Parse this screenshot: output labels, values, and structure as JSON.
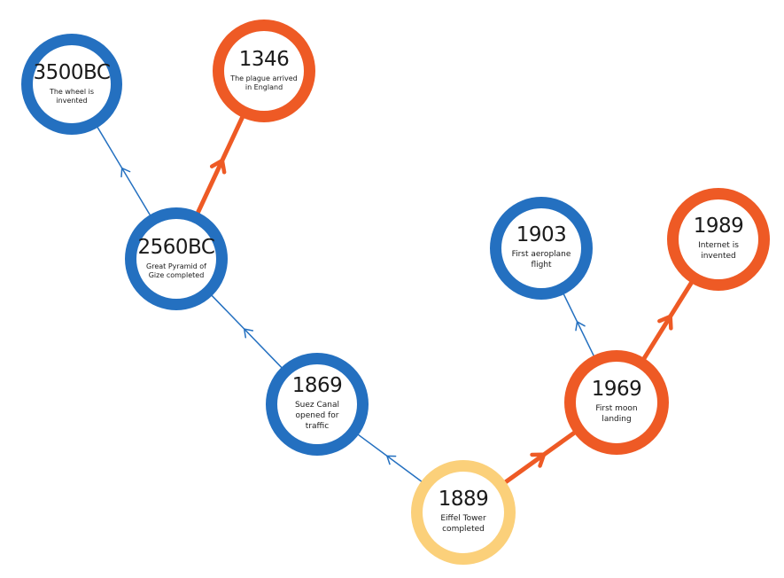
{
  "nodes": [
    {
      "id": "n3500bc",
      "year": "3500BC",
      "desc": "The wheel is invented",
      "color": "blue"
    },
    {
      "id": "n1346",
      "year": "1346",
      "desc": "The plague arrived in England",
      "color": "orange"
    },
    {
      "id": "n2560bc",
      "year": "2560BC",
      "desc": "Great Pyramid of Gize completed",
      "color": "blue"
    },
    {
      "id": "n1903",
      "year": "1903",
      "desc": "First aeroplane flight",
      "color": "blue"
    },
    {
      "id": "n1989",
      "year": "1989",
      "desc": "Internet is invented",
      "color": "orange"
    },
    {
      "id": "n1869",
      "year": "1869",
      "desc": "Suez Canal opened for traffic",
      "color": "blue"
    },
    {
      "id": "n1969",
      "year": "1969",
      "desc": "First moon landing",
      "color": "orange"
    },
    {
      "id": "n1889",
      "year": "1889",
      "desc": "Eiffel Tower completed",
      "color": "yellow"
    }
  ],
  "edges": [
    {
      "from": "n1889",
      "to": "n1869",
      "style": "thin-blue"
    },
    {
      "from": "n1869",
      "to": "n2560bc",
      "style": "thin-blue"
    },
    {
      "from": "n2560bc",
      "to": "n3500bc",
      "style": "thin-blue"
    },
    {
      "from": "n2560bc",
      "to": "n1346",
      "style": "thick-orange"
    },
    {
      "from": "n1889",
      "to": "n1969",
      "style": "thick-orange"
    },
    {
      "from": "n1969",
      "to": "n1903",
      "style": "thin-blue"
    },
    {
      "from": "n1969",
      "to": "n1989",
      "style": "thick-orange"
    }
  ],
  "colors": {
    "blue": "#2470c0",
    "orange": "#ee5a25",
    "yellow": "#fbd07a",
    "text": "#1a1a1a"
  }
}
